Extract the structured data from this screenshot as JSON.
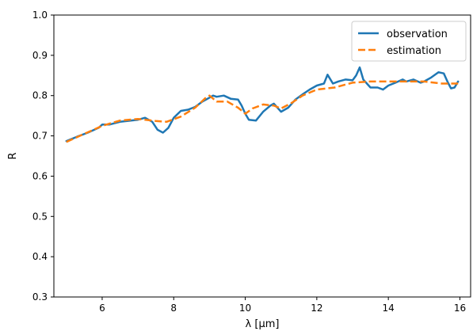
{
  "chart_data": {
    "type": "line",
    "title": "",
    "xlabel": "λ [μm]",
    "ylabel": "R",
    "xlim": [
      4.65,
      16.3
    ],
    "ylim": [
      0.3,
      1.0
    ],
    "xticks": [
      6,
      8,
      10,
      12,
      14,
      16
    ],
    "yticks": [
      0.3,
      0.4,
      0.5,
      0.6,
      0.7,
      0.8,
      0.9,
      1.0
    ],
    "xtick_labels": [
      "6",
      "8",
      "10",
      "12",
      "14",
      "16"
    ],
    "ytick_labels": [
      "0.3",
      "0.4",
      "0.5",
      "0.6",
      "0.7",
      "0.8",
      "0.9",
      "1.0"
    ],
    "grid": false,
    "legend_position": "top-right",
    "series": [
      {
        "name": "observation",
        "color": "#1f77b4",
        "style": "solid",
        "x": [
          5.0,
          5.3,
          5.6,
          5.9,
          6.0,
          6.2,
          6.5,
          6.8,
          7.0,
          7.2,
          7.4,
          7.55,
          7.7,
          7.85,
          8.0,
          8.2,
          8.4,
          8.6,
          8.8,
          9.0,
          9.1,
          9.2,
          9.4,
          9.6,
          9.8,
          9.9,
          10.0,
          10.1,
          10.3,
          10.5,
          10.7,
          10.8,
          11.0,
          11.2,
          11.4,
          11.6,
          11.8,
          12.0,
          12.2,
          12.3,
          12.45,
          12.6,
          12.8,
          13.0,
          13.1,
          13.2,
          13.3,
          13.5,
          13.7,
          13.85,
          14.0,
          14.2,
          14.4,
          14.5,
          14.7,
          14.9,
          15.0,
          15.2,
          15.4,
          15.55,
          15.65,
          15.75,
          15.85,
          15.95
        ],
        "y": [
          0.687,
          0.698,
          0.708,
          0.72,
          0.728,
          0.728,
          0.735,
          0.738,
          0.74,
          0.745,
          0.735,
          0.715,
          0.708,
          0.72,
          0.745,
          0.762,
          0.765,
          0.772,
          0.785,
          0.795,
          0.8,
          0.797,
          0.8,
          0.792,
          0.79,
          0.775,
          0.755,
          0.74,
          0.738,
          0.76,
          0.775,
          0.78,
          0.76,
          0.77,
          0.79,
          0.803,
          0.815,
          0.825,
          0.83,
          0.852,
          0.83,
          0.835,
          0.84,
          0.838,
          0.85,
          0.87,
          0.84,
          0.82,
          0.82,
          0.815,
          0.825,
          0.832,
          0.84,
          0.835,
          0.84,
          0.832,
          0.835,
          0.845,
          0.858,
          0.855,
          0.835,
          0.818,
          0.82,
          0.835
        ]
      },
      {
        "name": "estimation",
        "color": "#ff7f0e",
        "style": "dashed",
        "x": [
          5.0,
          5.5,
          6.0,
          6.5,
          7.0,
          7.5,
          7.8,
          8.2,
          8.6,
          8.9,
          9.0,
          9.2,
          9.5,
          9.8,
          10.0,
          10.2,
          10.5,
          10.8,
          11.0,
          11.3,
          11.6,
          12.0,
          12.5,
          13.0,
          13.5,
          14.0,
          14.5,
          15.0,
          15.5,
          15.95
        ],
        "y": [
          0.685,
          0.705,
          0.725,
          0.738,
          0.742,
          0.737,
          0.735,
          0.748,
          0.77,
          0.795,
          0.8,
          0.785,
          0.785,
          0.77,
          0.755,
          0.768,
          0.778,
          0.775,
          0.768,
          0.782,
          0.8,
          0.815,
          0.82,
          0.832,
          0.835,
          0.835,
          0.835,
          0.835,
          0.83,
          0.83
        ]
      }
    ]
  }
}
